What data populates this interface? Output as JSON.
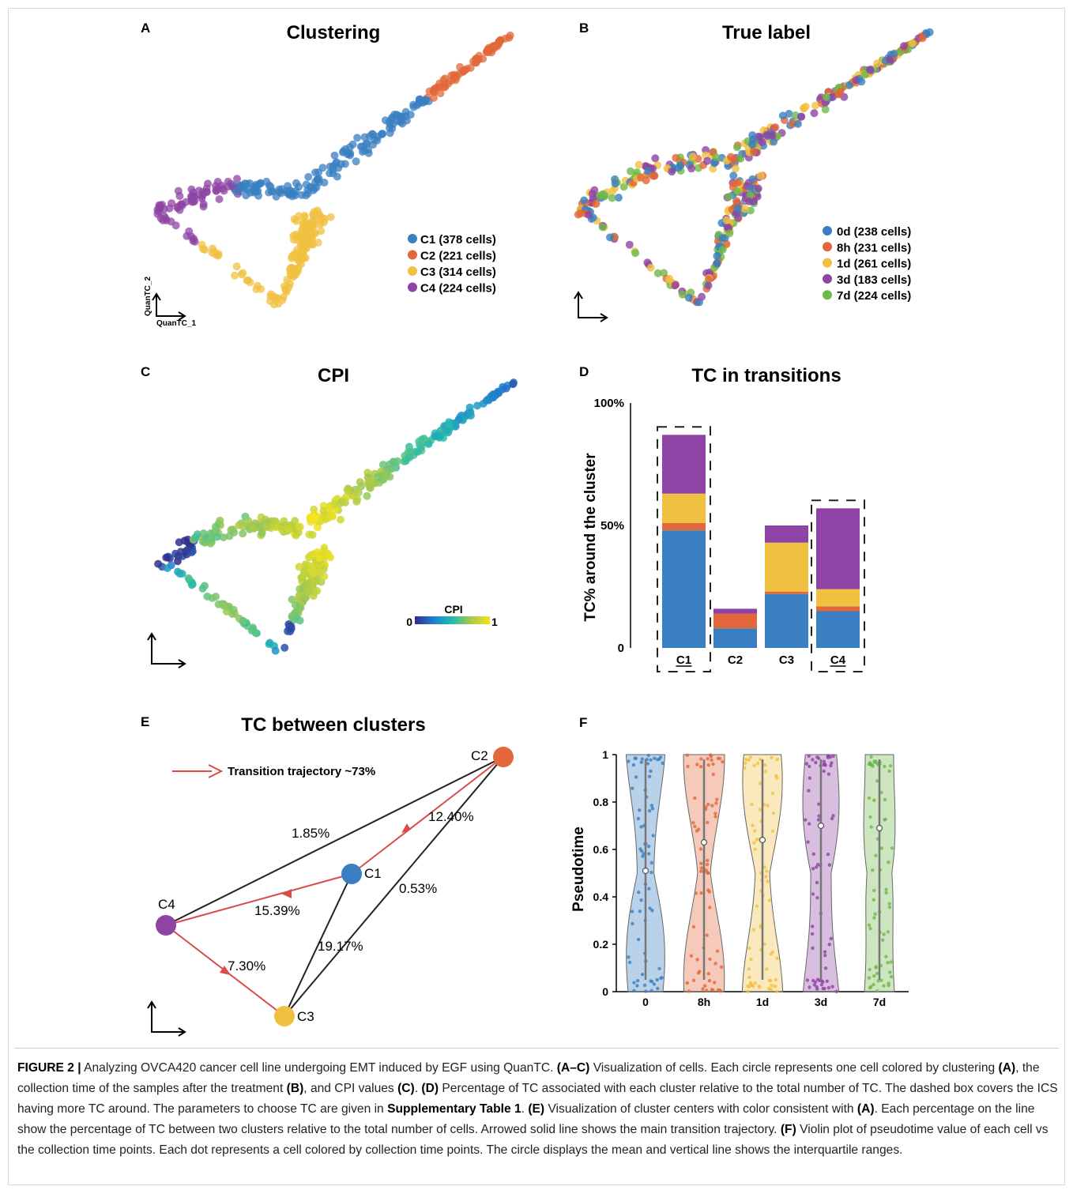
{
  "panels": {
    "A": {
      "label": "A",
      "title": "Clustering",
      "axis_y": "QuanTC_2",
      "axis_x": "QuanTC_1",
      "legend": [
        {
          "text": "C1 (378 cells)",
          "color": "#3a7fc1"
        },
        {
          "text": "C2 (221 cells)",
          "color": "#e2673a"
        },
        {
          "text": "C3 (314 cells)",
          "color": "#f0c040"
        },
        {
          "text": "C4 (224 cells)",
          "color": "#8e44a4"
        }
      ]
    },
    "B": {
      "label": "B",
      "title": "True label",
      "legend": [
        {
          "text": "0d (238 cells)",
          "color": "#3a7fc1"
        },
        {
          "text": "8h (231 cells)",
          "color": "#e2673a"
        },
        {
          "text": "1d (261 cells)",
          "color": "#f0c040"
        },
        {
          "text": "3d (183 cells)",
          "color": "#8e44a4"
        },
        {
          "text": "7d (224 cells)",
          "color": "#6fb84a"
        }
      ]
    },
    "C": {
      "label": "C",
      "title": "CPI",
      "colorbar_title": "CPI",
      "colorbar_min": "0",
      "colorbar_max": "1"
    },
    "D": {
      "label": "D",
      "title": "TC in transitions"
    },
    "E": {
      "label": "E",
      "title": "TC between clusters",
      "legend_text": "Transition trajectory ~73%",
      "nodes": [
        {
          "name": "C2",
          "color": "#e2673a"
        },
        {
          "name": "C1",
          "color": "#3a7fc1"
        },
        {
          "name": "C4",
          "color": "#8e44a4"
        },
        {
          "name": "C3",
          "color": "#f0c040"
        }
      ],
      "edge_labels": [
        "12.40%",
        "1.85%",
        "0.53%",
        "15.39%",
        "19.17%",
        "7.30%"
      ]
    },
    "F": {
      "label": "F"
    }
  },
  "chart_data": [
    {
      "panel": "D",
      "type": "bar",
      "ylabel": "TC% around the cluster",
      "categories": [
        "C1",
        "C2",
        "C3",
        "C4"
      ],
      "yticks": [
        "0",
        "50%",
        "100%"
      ],
      "ylim": [
        0,
        1
      ],
      "series": [
        {
          "values": [
            0.48,
            0.08,
            0.22,
            0.15
          ],
          "color": "#3a7fc1"
        },
        {
          "values": [
            0.03,
            0.06,
            0.01,
            0.02
          ],
          "color": "#e2673a"
        },
        {
          "values": [
            0.12,
            0.0,
            0.2,
            0.07
          ],
          "color": "#f0c040"
        },
        {
          "values": [
            0.24,
            0.02,
            0.07,
            0.33
          ],
          "color": "#8e44a4"
        }
      ],
      "highlighted": [
        "C1",
        "C4"
      ]
    },
    {
      "panel": "F",
      "type": "violin",
      "ylabel": "Pseudotime",
      "categories": [
        "0",
        "8h",
        "1d",
        "3d",
        "7d"
      ],
      "yticks": [
        "0",
        "0.2",
        "0.4",
        "0.6",
        "0.8",
        "1"
      ],
      "ylim": [
        0,
        1
      ],
      "means": [
        0.51,
        0.63,
        0.64,
        0.7,
        0.69
      ],
      "colors": [
        "#3a7fc1",
        "#e2673a",
        "#f0c040",
        "#8e44a4",
        "#6fb84a"
      ]
    }
  ],
  "caption": {
    "segments": [
      {
        "t": "FIGURE 2 |",
        "b": true
      },
      {
        "t": " Analyzing OVCA420 cancer cell line undergoing EMT induced by EGF using QuanTC. ",
        "b": false
      },
      {
        "t": "(A–C)",
        "b": true
      },
      {
        "t": " Visualization of cells. Each circle represents one cell colored by clustering ",
        "b": false
      },
      {
        "t": "(A)",
        "b": true
      },
      {
        "t": ", the collection time of the samples after the treatment ",
        "b": false
      },
      {
        "t": "(B)",
        "b": true
      },
      {
        "t": ", and CPI values ",
        "b": false
      },
      {
        "t": "(C)",
        "b": true
      },
      {
        "t": ". ",
        "b": false
      },
      {
        "t": "(D)",
        "b": true
      },
      {
        "t": " Percentage of TC associated with each cluster relative to the total number of TC. The dashed box covers the ICS having more TC around. The parameters to choose TC are given in ",
        "b": false
      },
      {
        "t": "Supplementary Table 1",
        "b": true
      },
      {
        "t": ". ",
        "b": false
      },
      {
        "t": "(E)",
        "b": true
      },
      {
        "t": " Visualization of cluster centers with color consistent with ",
        "b": false
      },
      {
        "t": "(A)",
        "b": true
      },
      {
        "t": ". Each percentage on the line show the percentage of TC between two clusters relative to the total number of cells. Arrowed solid line shows the main transition trajectory. ",
        "b": false
      },
      {
        "t": "(F)",
        "b": true
      },
      {
        "t": " Violin plot of pseudotime value of each cell vs the collection time points. Each dot represents a cell colored by collection time points. The circle displays the mean and vertical line shows the interquartile ranges.",
        "b": false
      }
    ]
  }
}
